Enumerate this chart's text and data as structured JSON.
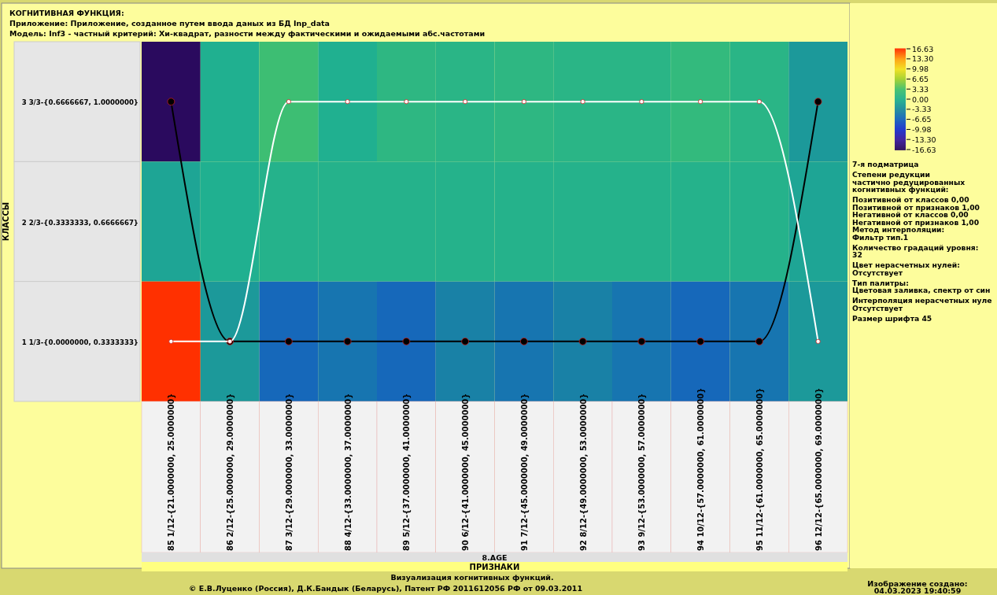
{
  "chart_data": {
    "type": "heatmap",
    "title": "КОГНИТИВНАЯ ФУНКЦИЯ:",
    "subtitle": "Приложение: Приложение, созданное путем ввода даных из БД Inp_data",
    "xlabel": "ПРИЗНАКИ",
    "ylabel": "КЛАССЫ",
    "categories": [
      "85 1/12-{21.0000000, 25.0000000}",
      "86 2/12-{25.0000000, 29.0000000}",
      "87 3/12-{29.0000000, 33.0000000}",
      "88 4/12-{33.0000000, 37.0000000}",
      "89 5/12-{37.0000000, 41.0000000}",
      "90 6/12-{41.0000000, 45.0000000}",
      "91 7/12-{45.0000000, 49.0000000}",
      "92 8/12-{49.0000000, 53.0000000}",
      "93 9/12-{53.0000000, 57.0000000}",
      "94 10/12-{57.0000000, 61.0000000}",
      "95 11/12-{61.0000000, 65.0000000}",
      "96 12/12-{65.0000000, 69.0000000}"
    ],
    "y_categories": [
      "3 3/3-{0.6666667, 1.0000000}",
      "2 2/3-{0.3333333, 0.6666667}",
      "1 1/3-{0.0000000, 0.3333333}"
    ],
    "cells": [
      [
        -16.63,
        0,
        3,
        0,
        1.5,
        1,
        1.5,
        1,
        1,
        2,
        1,
        -2
      ],
      [
        -1,
        0,
        0.5,
        0.5,
        0.5,
        0.5,
        0.5,
        0.5,
        0.5,
        0.5,
        0.5,
        -1
      ],
      [
        16.63,
        -2,
        -6,
        -5,
        -6,
        -4,
        -5,
        -4,
        -5,
        -6,
        -5,
        -2
      ]
    ],
    "clim": [
      -16.63,
      16.63
    ],
    "cticks": [
      {
        "value": 16.63,
        "label": "16.63"
      },
      {
        "value": 13.3,
        "label": "13.30"
      },
      {
        "value": 9.98,
        "label": "9.98"
      },
      {
        "value": 6.65,
        "label": "6.65"
      },
      {
        "value": 3.33,
        "label": "3.33"
      },
      {
        "value": 0,
        "label": "0.00"
      },
      {
        "value": -3.33,
        "label": "-3.33"
      },
      {
        "value": -6.65,
        "label": "-6.65"
      },
      {
        "value": -9.98,
        "label": "-9.98"
      },
      {
        "value": -13.3,
        "label": "-13.30"
      },
      {
        "value": -16.63,
        "label": "-16.63"
      }
    ],
    "series": [
      {
        "type": "line",
        "color": "#000000",
        "values": [
          0,
          2,
          2,
          2,
          2,
          2,
          2,
          2,
          2,
          2,
          2,
          0
        ]
      },
      {
        "type": "line",
        "color": "#ffffff",
        "values": [
          2,
          2,
          0,
          0,
          0,
          0,
          0,
          0,
          0,
          0,
          0,
          2
        ]
      }
    ],
    "marker": "circle",
    "annotations": [
      "Модель: Inf3 - частный критерий: Хи-квадрат, разности между фактическими и ожидаемыми абс.частотами",
      "8.AGE",
      "7-я подматрица",
      "Степени редукции",
      "частично редуцированных",
      "когнитивных функций:",
      "Позитивной от классов 0,00",
      "Позитивной от признаков 1,00",
      "Негативной от классов 0,00",
      "Негативной от признаков 1,00",
      "Метод интерполяции:",
      "Фильтр тип.1",
      "Количество градаций уровня:",
      "32",
      "Цвет нерасчетных нулей:",
      "Отсутствует",
      "Тип палитры:",
      "Цветовая заливка, спектр от син",
      "Интерполяция нерасчетных нуле",
      "Отсутствует",
      "Размер шрифта 45",
      "Визуализация когнитивных функций.",
      "© Е.В.Луценко (Россия), Д.К.Бандык (Беларусь), Патент РФ  2011612056 РФ от 09.03.2011",
      "Изображение создано:",
      "04.03.2023  19:40:59"
    ]
  }
}
